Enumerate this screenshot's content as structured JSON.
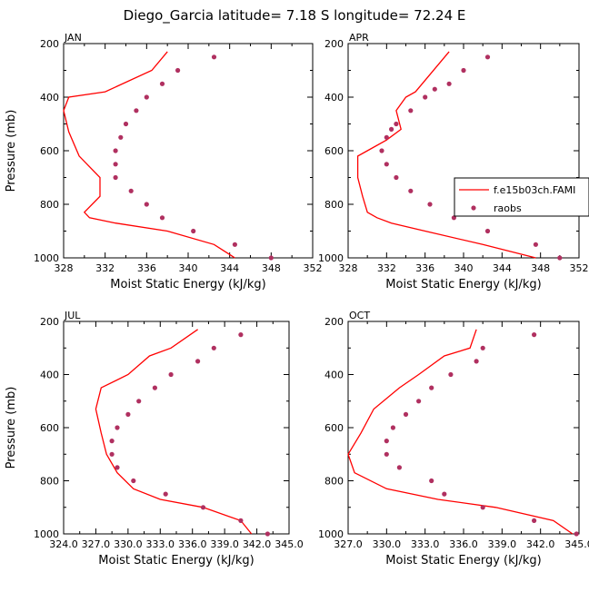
{
  "title": "Diego_Garcia  latitude= 7.18 S longitude= 72.24 E",
  "legend": {
    "model": "f.e15b03ch.FAMI",
    "obs": "raobs"
  },
  "colors": {
    "model_line": "#ff0000",
    "obs_marker": "#b03060"
  },
  "chart_data": [
    {
      "type": "line",
      "panel": "JAN",
      "xlabel": "Moist Static Energy (kJ/kg)",
      "ylabel": "Pressure (mb)",
      "xlim": [
        328,
        352
      ],
      "ylim": [
        1000,
        200
      ],
      "xticks": [
        "328",
        "332",
        "336",
        "340",
        "344",
        "348",
        "352"
      ],
      "yticks": [
        "200",
        "400",
        "600",
        "800",
        "1000"
      ],
      "series": [
        {
          "name": "f.e15b03ch.FAMI",
          "x": [
            344.5,
            342.5,
            338.0,
            333.0,
            330.5,
            330.0,
            331.5,
            331.5,
            329.5,
            328.5,
            328.0,
            328.5,
            332.0,
            336.5,
            338.0
          ],
          "y": [
            1000,
            950,
            900,
            870,
            850,
            830,
            770,
            700,
            620,
            530,
            450,
            400,
            380,
            300,
            230
          ]
        },
        {
          "name": "raobs",
          "x": [
            348.0,
            344.5,
            340.5,
            337.5,
            336.0,
            334.5,
            333.0,
            333.0,
            333.0,
            333.5,
            334.0,
            335.0,
            336.0,
            337.5,
            339.0,
            342.5
          ],
          "y": [
            1000,
            950,
            900,
            850,
            800,
            750,
            700,
            650,
            600,
            550,
            500,
            450,
            400,
            350,
            300,
            250
          ]
        }
      ]
    },
    {
      "type": "line",
      "panel": "APR",
      "xlabel": "Moist Static Energy (kJ/kg)",
      "ylabel": "",
      "xlim": [
        328,
        352
      ],
      "ylim": [
        1000,
        200
      ],
      "xticks": [
        "328",
        "332",
        "336",
        "340",
        "344",
        "348",
        "352"
      ],
      "yticks": [
        "200",
        "400",
        "600",
        "800",
        "1000"
      ],
      "series": [
        {
          "name": "f.e15b03ch.FAMI",
          "x": [
            347.5,
            342.0,
            336.0,
            332.5,
            331.0,
            330.0,
            329.5,
            329.0,
            329.0,
            330.0,
            332.0,
            333.5,
            333.0,
            334.0,
            335.0,
            338.5
          ],
          "y": [
            1000,
            950,
            900,
            870,
            850,
            830,
            770,
            700,
            620,
            600,
            560,
            520,
            450,
            400,
            380,
            230
          ]
        },
        {
          "name": "raobs",
          "x": [
            350.0,
            347.5,
            342.5,
            339.0,
            336.5,
            334.5,
            333.0,
            332.0,
            331.5,
            332.0,
            332.5,
            333.0,
            334.5,
            336.0,
            337.0,
            338.5,
            340.0,
            342.5
          ],
          "y": [
            1000,
            950,
            900,
            850,
            800,
            750,
            700,
            650,
            600,
            550,
            520,
            500,
            450,
            400,
            370,
            350,
            300,
            250
          ]
        }
      ]
    },
    {
      "type": "line",
      "panel": "JUL",
      "xlabel": "Moist Static Energy (kJ/kg)",
      "ylabel": "Pressure (mb)",
      "xlim": [
        324.0,
        345.0
      ],
      "ylim": [
        1000,
        200
      ],
      "xticks": [
        "324.0",
        "327.0",
        "330.0",
        "333.0",
        "336.0",
        "339.0",
        "342.0",
        "345.0"
      ],
      "yticks": [
        "200",
        "400",
        "600",
        "800",
        "1000"
      ],
      "series": [
        {
          "name": "f.e15b03ch.FAMI",
          "x": [
            341.5,
            340.5,
            337.0,
            333.0,
            330.5,
            329.0,
            328.0,
            327.5,
            327.0,
            327.5,
            330.0,
            332.0,
            334.0,
            336.5
          ],
          "y": [
            1000,
            950,
            900,
            870,
            830,
            770,
            700,
            620,
            530,
            450,
            400,
            330,
            300,
            230
          ]
        },
        {
          "name": "raobs",
          "x": [
            343.0,
            340.5,
            337.0,
            333.5,
            330.5,
            329.0,
            328.5,
            328.5,
            329.0,
            330.0,
            331.0,
            332.5,
            334.0,
            336.5,
            338.0,
            340.5
          ],
          "y": [
            1000,
            950,
            900,
            850,
            800,
            750,
            700,
            650,
            600,
            550,
            500,
            450,
            400,
            350,
            300,
            250
          ]
        }
      ]
    },
    {
      "type": "line",
      "panel": "OCT",
      "xlabel": "Moist Static Energy (kJ/kg)",
      "ylabel": "",
      "xlim": [
        327.0,
        345.0
      ],
      "ylim": [
        1000,
        200
      ],
      "xticks": [
        "327.0",
        "330.0",
        "333.0",
        "336.0",
        "339.0",
        "342.0",
        "345.0"
      ],
      "yticks": [
        "200",
        "400",
        "600",
        "800",
        "1000"
      ],
      "series": [
        {
          "name": "f.e15b03ch.FAMI",
          "x": [
            344.5,
            343.0,
            338.5,
            334.0,
            330.0,
            327.5,
            327.0,
            328.0,
            329.0,
            331.0,
            332.5,
            334.5,
            336.5,
            337.0
          ],
          "y": [
            1000,
            950,
            900,
            870,
            830,
            770,
            700,
            620,
            530,
            450,
            400,
            330,
            300,
            230
          ]
        },
        {
          "name": "raobs",
          "x": [
            344.8,
            341.5,
            337.5,
            334.5,
            333.5,
            331.0,
            330.0,
            330.0,
            330.5,
            331.5,
            332.5,
            333.5,
            335.0,
            337.0,
            337.5,
            341.5
          ],
          "y": [
            1000,
            950,
            900,
            850,
            800,
            750,
            700,
            650,
            600,
            550,
            500,
            450,
            400,
            350,
            300,
            250
          ]
        }
      ]
    }
  ]
}
